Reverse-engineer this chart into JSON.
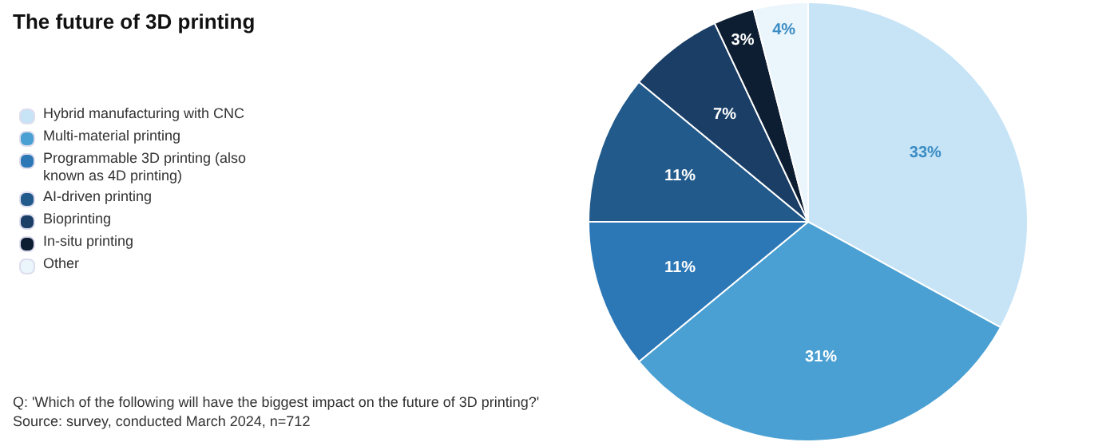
{
  "chart_data": {
    "type": "pie",
    "title": "The future of 3D printing",
    "categories": [
      "Hybrid manufacturing with CNC",
      "Multi-material printing",
      "Programmable 3D printing (also known as 4D printing)",
      "AI-driven printing",
      "Bioprinting",
      "In-situ printing",
      "Other"
    ],
    "values": [
      33,
      31,
      11,
      11,
      7,
      3,
      4
    ],
    "colors": [
      "#c6e4f6",
      "#4aa0d2",
      "#2c77b6",
      "#225a8b",
      "#1a3e66",
      "#0d1e33",
      "#eaf5fc"
    ],
    "value_labels": [
      "33%",
      "31%",
      "11%",
      "11%",
      "7%",
      "3%",
      "4%"
    ],
    "legend": "left",
    "annotations": [
      "Q: 'Which of the following will have the biggest impact on the future of 3D printing?'",
      "Source: survey, conducted March 2024, n=712"
    ]
  }
}
